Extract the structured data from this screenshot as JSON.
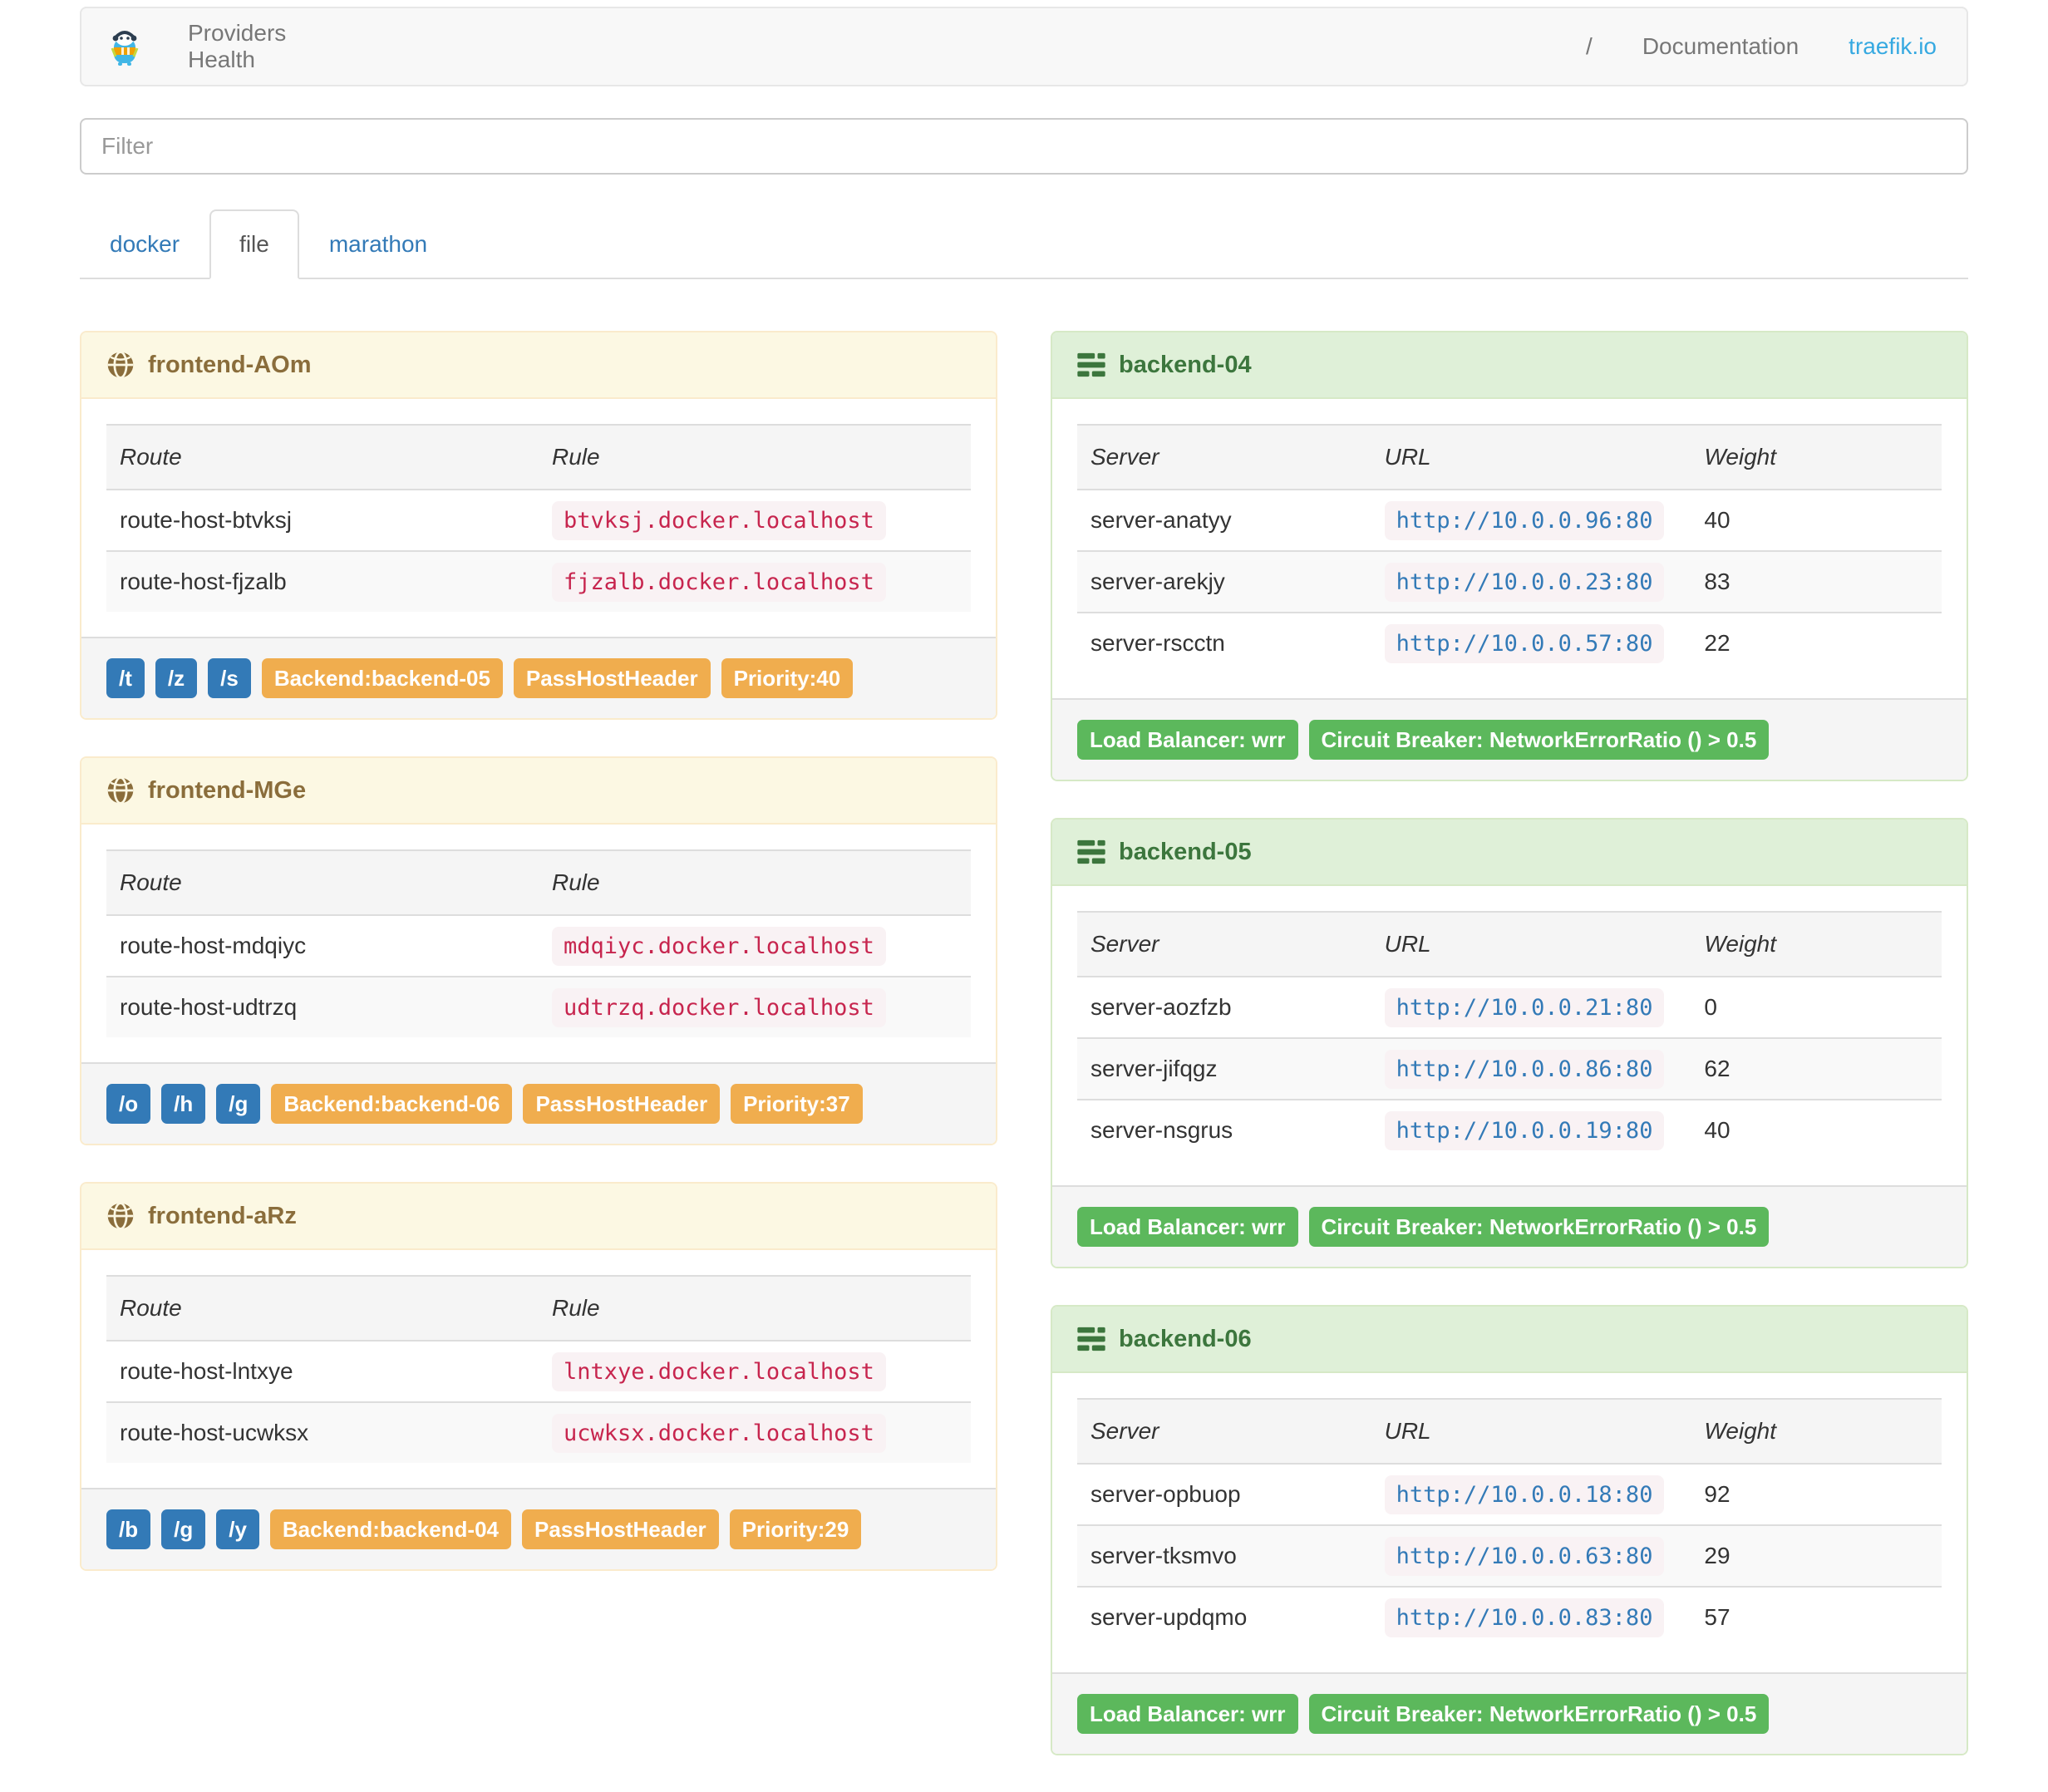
{
  "navbar": {
    "brand": "traefik-logo",
    "links": [
      {
        "label": "Providers"
      },
      {
        "label": "Health"
      }
    ],
    "version": "/",
    "documentation_label": "Documentation",
    "site_label": "traefik.io"
  },
  "filter": {
    "placeholder": "Filter"
  },
  "tabs": [
    {
      "label": "docker",
      "active": false
    },
    {
      "label": "file",
      "active": true
    },
    {
      "label": "marathon",
      "active": false
    }
  ],
  "frontends": {
    "columns": [
      "Route",
      "Rule"
    ],
    "panels": [
      {
        "title": "frontend-AOm",
        "routes": [
          {
            "route": "route-host-btvksj",
            "rule": "btvksj.docker.localhost"
          },
          {
            "route": "route-host-fjzalb",
            "rule": "fjzalb.docker.localhost"
          }
        ],
        "entry_badges": [
          "/t",
          "/z",
          "/s"
        ],
        "config_badges": [
          "Backend:backend-05",
          "PassHostHeader",
          "Priority:40"
        ]
      },
      {
        "title": "frontend-MGe",
        "routes": [
          {
            "route": "route-host-mdqiyc",
            "rule": "mdqiyc.docker.localhost"
          },
          {
            "route": "route-host-udtrzq",
            "rule": "udtrzq.docker.localhost"
          }
        ],
        "entry_badges": [
          "/o",
          "/h",
          "/g"
        ],
        "config_badges": [
          "Backend:backend-06",
          "PassHostHeader",
          "Priority:37"
        ]
      },
      {
        "title": "frontend-aRz",
        "routes": [
          {
            "route": "route-host-lntxye",
            "rule": "lntxye.docker.localhost"
          },
          {
            "route": "route-host-ucwksx",
            "rule": "ucwksx.docker.localhost"
          }
        ],
        "entry_badges": [
          "/b",
          "/g",
          "/y"
        ],
        "config_badges": [
          "Backend:backend-04",
          "PassHostHeader",
          "Priority:29"
        ]
      }
    ]
  },
  "backends": {
    "columns": [
      "Server",
      "URL",
      "Weight"
    ],
    "panels": [
      {
        "title": "backend-04",
        "servers": [
          {
            "server": "server-anatyy",
            "url": "http://10.0.0.96:80",
            "weight": "40"
          },
          {
            "server": "server-arekjy",
            "url": "http://10.0.0.23:80",
            "weight": "83"
          },
          {
            "server": "server-rscctn",
            "url": "http://10.0.0.57:80",
            "weight": "22"
          }
        ],
        "badges": [
          "Load Balancer: wrr",
          "Circuit Breaker: NetworkErrorRatio () > 0.5"
        ]
      },
      {
        "title": "backend-05",
        "servers": [
          {
            "server": "server-aozfzb",
            "url": "http://10.0.0.21:80",
            "weight": "0"
          },
          {
            "server": "server-jifqgz",
            "url": "http://10.0.0.86:80",
            "weight": "62"
          },
          {
            "server": "server-nsgrus",
            "url": "http://10.0.0.19:80",
            "weight": "40"
          }
        ],
        "badges": [
          "Load Balancer: wrr",
          "Circuit Breaker: NetworkErrorRatio () > 0.5"
        ]
      },
      {
        "title": "backend-06",
        "servers": [
          {
            "server": "server-opbuop",
            "url": "http://10.0.0.18:80",
            "weight": "92"
          },
          {
            "server": "server-tksmvo",
            "url": "http://10.0.0.63:80",
            "weight": "29"
          },
          {
            "server": "server-updqmo",
            "url": "http://10.0.0.83:80",
            "weight": "57"
          }
        ],
        "badges": [
          "Load Balancer: wrr",
          "Circuit Breaker: NetworkErrorRatio () > 0.5"
        ]
      }
    ]
  },
  "colors": {
    "link_blue": "#337ab7",
    "brand_blue": "#36a9e1",
    "label_primary": "#337ab7",
    "label_warning": "#f0ad4e",
    "label_success": "#5cb85c",
    "panel_warning_bg": "#fcf8e3",
    "panel_warning_border": "#faebcc",
    "panel_warning_text": "#8a6d3b",
    "panel_success_bg": "#dff0d8",
    "panel_success_border": "#d6e9c6",
    "panel_success_text": "#3c763d",
    "code_text": "#c7254e",
    "code_bg": "#f9f2f4",
    "navbar_bg": "#f8f8f8"
  }
}
